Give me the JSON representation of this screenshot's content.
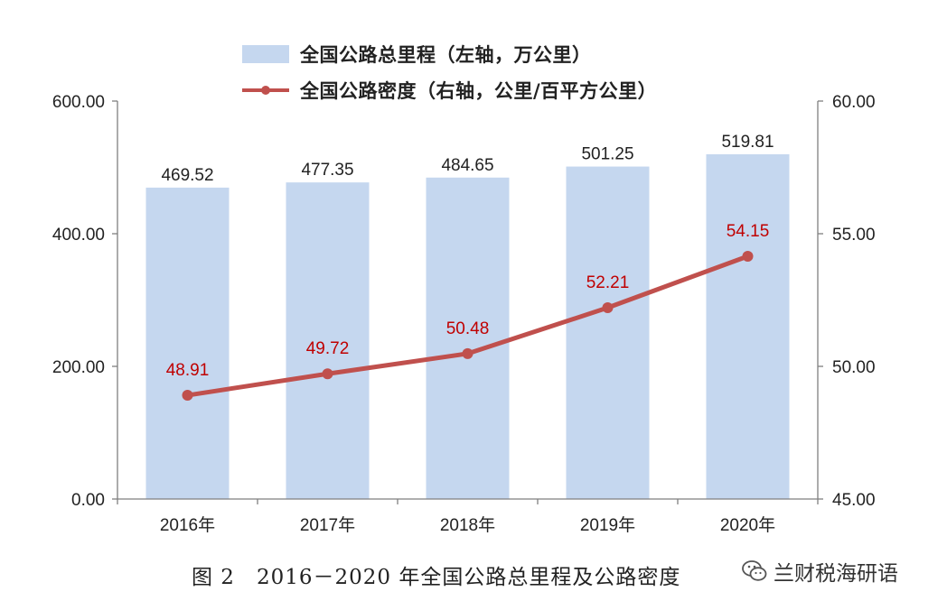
{
  "legend": {
    "bar_label": "全国公路总里程（左轴，万公里）",
    "line_label": "全国公路密度（右轴，公里/百平方公里）"
  },
  "caption": "图 2　2016－2020 年全国公路总里程及公路密度",
  "watermark": {
    "text": "兰财税海研语",
    "icon": "wechat-icon"
  },
  "colors": {
    "bar": "#c5d7ef",
    "line": "#c0504d",
    "axis": "#7f7f7f",
    "text": "#222222",
    "line_label": "#c00000"
  },
  "chart_data": {
    "type": "bar",
    "categories": [
      "2016年",
      "2017年",
      "2018年",
      "2019年",
      "2020年"
    ],
    "series": [
      {
        "name": "全国公路总里程（左轴，万公里）",
        "type": "bar",
        "axis": "left",
        "values": [
          469.52,
          477.35,
          484.65,
          501.25,
          519.81
        ],
        "labels": [
          "469.52",
          "477.35",
          "484.65",
          "501.25",
          "519.81"
        ]
      },
      {
        "name": "全国公路密度（右轴，公里/百平方公里）",
        "type": "line",
        "axis": "right",
        "values": [
          48.91,
          49.72,
          50.48,
          52.21,
          54.15
        ],
        "labels": [
          "48.91",
          "49.72",
          "50.48",
          "52.21",
          "54.15"
        ]
      }
    ],
    "y_left": {
      "ylim": [
        0,
        600
      ],
      "ticks": [
        "0.00",
        "200.00",
        "400.00",
        "600.00"
      ]
    },
    "y_right": {
      "ylim": [
        45,
        60
      ],
      "ticks": [
        "45.00",
        "50.00",
        "55.00",
        "60.00"
      ]
    },
    "grid": false,
    "legend_position": "top"
  }
}
